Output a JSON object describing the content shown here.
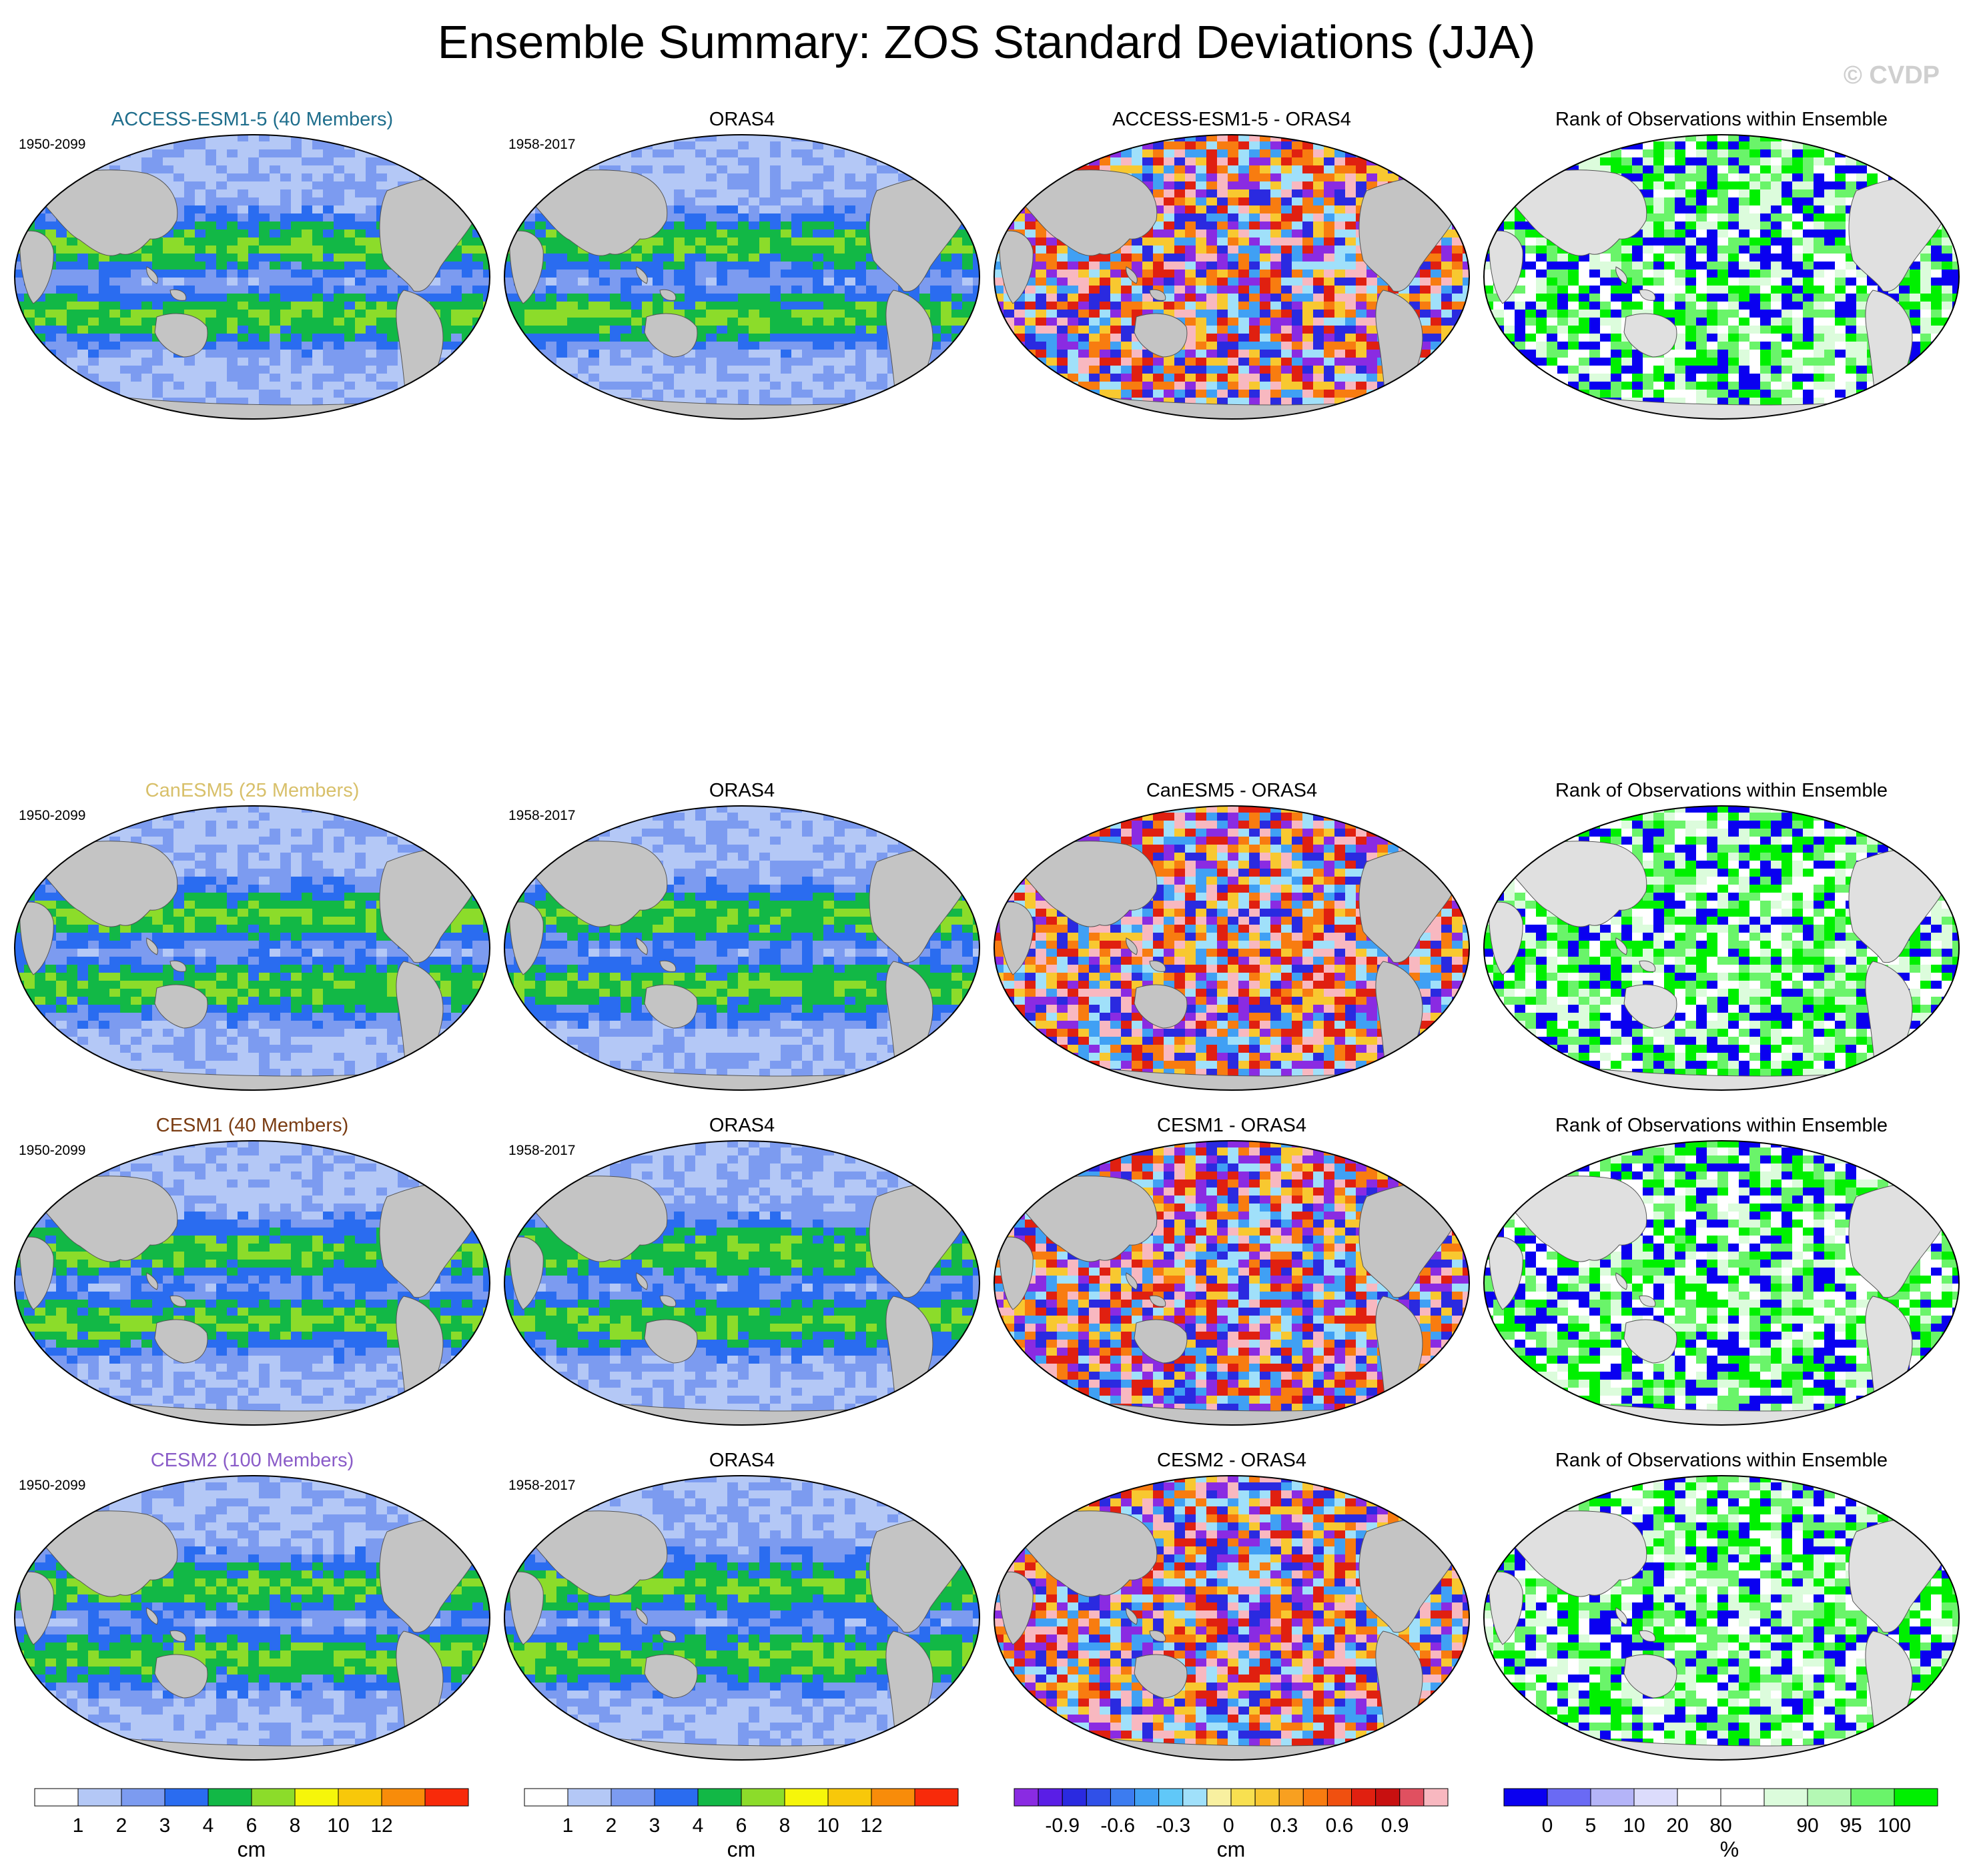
{
  "title": "Ensemble Summary: ZOS Standard Deviations (JJA)",
  "copyright": "© CVDP",
  "rows": [
    {
      "model": "ACCESS-ESM1-5 (40 Members)",
      "model_color": "#1f6e8c",
      "model_years": "1950-2099",
      "obs": "ORAS4",
      "obs_years": "1958-2017",
      "diff": "ACCESS-ESM1-5 - ORAS4",
      "rank": "Rank of Observations within Ensemble"
    },
    {
      "model": "CanESM5 (25 Members)",
      "model_color": "#d8c06a",
      "model_years": "1950-2099",
      "obs": "ORAS4",
      "obs_years": "1958-2017",
      "diff": "CanESM5 - ORAS4",
      "rank": "Rank of Observations within Ensemble"
    },
    {
      "model": "CESM1 (40 Members)",
      "model_color": "#7a3c12",
      "model_years": "1950-2099",
      "obs": "ORAS4",
      "obs_years": "1958-2017",
      "diff": "CESM1 - ORAS4",
      "rank": "Rank of Observations within Ensemble"
    },
    {
      "model": "CESM2 (100 Members)",
      "model_color": "#8a5cc8",
      "model_years": "1950-2099",
      "obs": "ORAS4",
      "obs_years": "1958-2017",
      "diff": "CESM2 - ORAS4",
      "rank": "Rank of Observations within Ensemble"
    }
  ],
  "chart_data": [
    {
      "type": "heatmap",
      "projection": "robinson-global-map",
      "description_role": "ensemble mean std dev",
      "colorbar": {
        "unit": "cm",
        "colors": [
          "#ffffff",
          "#b4c8f6",
          "#7c9bf0",
          "#2a6cf0",
          "#12b846",
          "#8cdc2a",
          "#f6f60a",
          "#f8c80a",
          "#f88c0a",
          "#f82a0a"
        ],
        "tick_labels": [
          "1",
          "2",
          "3",
          "4",
          "6",
          "8",
          "10",
          "12"
        ]
      }
    },
    {
      "type": "heatmap",
      "projection": "robinson-global-map",
      "description_role": "difference model minus obs",
      "colorbar": {
        "unit": "cm",
        "colors": [
          "#8a2be2",
          "#5a1ee6",
          "#2a2ae0",
          "#3050e8",
          "#3c7cf0",
          "#40a0f4",
          "#60c8f8",
          "#a0e0fa",
          "#f8f0a0",
          "#f8e050",
          "#f8c830",
          "#f8a020",
          "#f87c10",
          "#f05010",
          "#e02010",
          "#c81010",
          "#e05060",
          "#f8b8c0"
        ],
        "tick_labels": [
          "-0.9",
          "-0.6",
          "-0.3",
          "0",
          "0.3",
          "0.6",
          "0.9"
        ]
      }
    },
    {
      "type": "heatmap",
      "projection": "robinson-global-map",
      "description_role": "rank of observations",
      "colorbar": {
        "unit": "%",
        "colors": [
          "#0a00f0",
          "#6a6af4",
          "#b4b4f8",
          "#dcdcfc",
          "#ffffff",
          "#ffffff",
          "#dcfcdc",
          "#b4f8b4",
          "#6af46a",
          "#00f000"
        ],
        "tick_labels": [
          "0",
          "5",
          "10",
          "20",
          "80",
          "90",
          "95",
          "100"
        ]
      }
    }
  ]
}
